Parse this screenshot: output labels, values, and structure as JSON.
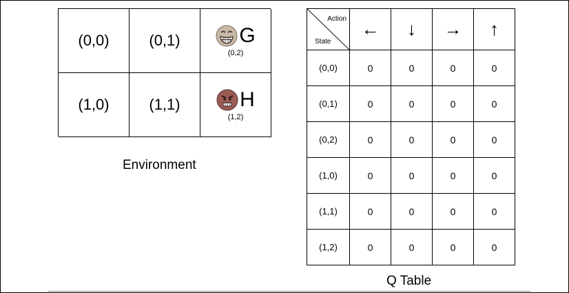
{
  "environment": {
    "caption": "Environment",
    "cells": [
      {
        "label": "(0,0)"
      },
      {
        "label": "(0,1)"
      },
      {
        "letter": "G",
        "coord": "(0,2)",
        "icon": "grinning-face-icon",
        "icon_color": "#c8b8a6"
      },
      {
        "label": "(1,0)"
      },
      {
        "label": "(1,1)"
      },
      {
        "letter": "H",
        "coord": "(1,2)",
        "icon": "angry-face-icon",
        "icon_color": "#9a5b55"
      }
    ]
  },
  "q_table": {
    "caption": "Q Table",
    "corner_action_label": "Action",
    "corner_state_label": "State",
    "actions": [
      "←",
      "↓",
      "→",
      "↑"
    ],
    "states": [
      "(0,0)",
      "(0,1)",
      "(0,2)",
      "(1,0)",
      "(1,1)",
      "(1,2)"
    ],
    "values": [
      [
        "0",
        "0",
        "0",
        "0"
      ],
      [
        "0",
        "0",
        "0",
        "0"
      ],
      [
        "0",
        "0",
        "0",
        "0"
      ],
      [
        "0",
        "0",
        "0",
        "0"
      ],
      [
        "0",
        "0",
        "0",
        "0"
      ],
      [
        "0",
        "0",
        "0",
        "0"
      ]
    ]
  }
}
